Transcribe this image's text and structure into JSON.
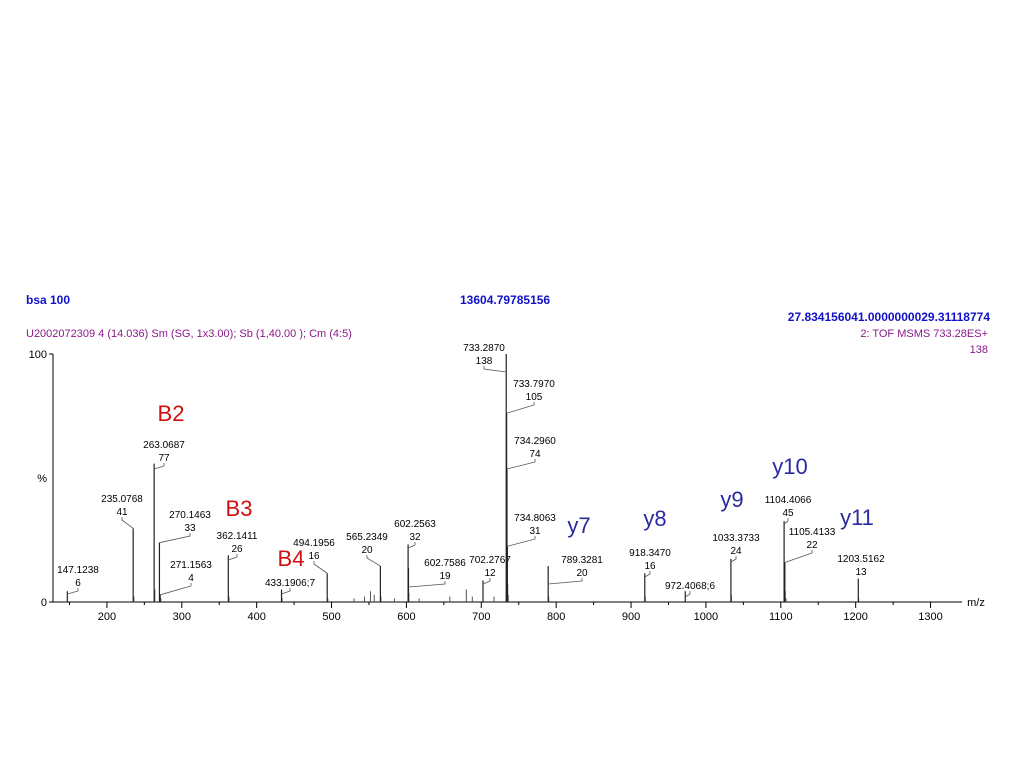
{
  "header": {
    "sample": "bsa 100",
    "center_value": "13604.79785156",
    "right_value": "27.834156041.0000000029.31118774",
    "file_info": "U2002072309  4 (14.036) Sm (SG, 1x3.00); Sb (1,40.00 ); Cm (4:5)",
    "scan_info": "2: TOF MSMS 733.28ES+",
    "max_intensity": "138"
  },
  "colors": {
    "ion_b": "#d01010",
    "ion_y": "#2a2aa0",
    "header_blue": "#1010c8",
    "header_purple": "#8a1a8a"
  },
  "chart_data": {
    "type": "bar",
    "title": "",
    "xlabel": "m/z",
    "ylabel": "%",
    "xlim": [
      128,
      1342
    ],
    "ylim": [
      0,
      100
    ],
    "x_ticks": [
      200,
      300,
      400,
      500,
      600,
      700,
      800,
      900,
      1000,
      1100,
      1200,
      1300
    ],
    "y_ticks": [
      {
        "value": 0,
        "label": "0"
      },
      {
        "value": 100,
        "label": "100"
      }
    ],
    "peaks": [
      {
        "mz": 147.1238,
        "intensity": 6,
        "label": "147.1238",
        "sublabel": "6"
      },
      {
        "mz": 235.0768,
        "intensity": 41,
        "label": "235.0768",
        "sublabel": "41"
      },
      {
        "mz": 263.0687,
        "intensity": 77,
        "label": "263.0687",
        "sublabel": "77"
      },
      {
        "mz": 270.1463,
        "intensity": 33,
        "label": "270.1463",
        "sublabel": "33"
      },
      {
        "mz": 271.1563,
        "intensity": 4,
        "label": "271.1563",
        "sublabel": "4"
      },
      {
        "mz": 362.1411,
        "intensity": 26,
        "label": "362.1411",
        "sublabel": "26"
      },
      {
        "mz": 433.1906,
        "intensity": 7,
        "label": "433.1906;7",
        "sublabel": ""
      },
      {
        "mz": 494.1956,
        "intensity": 16,
        "label": "494.1956",
        "sublabel": "16"
      },
      {
        "mz": 565.2349,
        "intensity": 20,
        "label": "565.2349",
        "sublabel": "20"
      },
      {
        "mz": 602.2563,
        "intensity": 32,
        "label": "602.2563",
        "sublabel": "32"
      },
      {
        "mz": 602.7586,
        "intensity": 19,
        "label": "602.7586",
        "sublabel": "19"
      },
      {
        "mz": 702.2767,
        "intensity": 12,
        "label": "702.2767",
        "sublabel": "12"
      },
      {
        "mz": 733.287,
        "intensity": 138,
        "label": "733.2870",
        "sublabel": "138"
      },
      {
        "mz": 733.797,
        "intensity": 105,
        "label": "733.7970",
        "sublabel": "105"
      },
      {
        "mz": 734.296,
        "intensity": 74,
        "label": "734.2960",
        "sublabel": "74"
      },
      {
        "mz": 734.8063,
        "intensity": 31,
        "label": "734.8063",
        "sublabel": "31"
      },
      {
        "mz": 789.3281,
        "intensity": 20,
        "label": "789.3281",
        "sublabel": "20"
      },
      {
        "mz": 918.347,
        "intensity": 16,
        "label": "918.3470",
        "sublabel": "16"
      },
      {
        "mz": 972.4068,
        "intensity": 6,
        "label": "972.4068;6",
        "sublabel": ""
      },
      {
        "mz": 1033.3733,
        "intensity": 24,
        "label": "1033.3733",
        "sublabel": "24"
      },
      {
        "mz": 1104.4066,
        "intensity": 45,
        "label": "1104.4066",
        "sublabel": "45"
      },
      {
        "mz": 1105.4133,
        "intensity": 22,
        "label": "1105.4133",
        "sublabel": "22"
      },
      {
        "mz": 1203.5162,
        "intensity": 13,
        "label": "1203.5162",
        "sublabel": "13"
      }
    ],
    "minor_peaks": [
      {
        "mz": 236,
        "intensity": 3
      },
      {
        "mz": 264,
        "intensity": 7
      },
      {
        "mz": 272,
        "intensity": 2
      },
      {
        "mz": 363,
        "intensity": 3
      },
      {
        "mz": 434,
        "intensity": 2
      },
      {
        "mz": 495,
        "intensity": 2
      },
      {
        "mz": 530,
        "intensity": 2
      },
      {
        "mz": 544,
        "intensity": 3
      },
      {
        "mz": 552,
        "intensity": 6
      },
      {
        "mz": 557,
        "intensity": 4
      },
      {
        "mz": 566,
        "intensity": 3
      },
      {
        "mz": 584,
        "intensity": 2
      },
      {
        "mz": 603.3,
        "intensity": 5
      },
      {
        "mz": 617,
        "intensity": 2
      },
      {
        "mz": 658,
        "intensity": 3
      },
      {
        "mz": 680,
        "intensity": 7
      },
      {
        "mz": 688,
        "intensity": 3
      },
      {
        "mz": 717,
        "intensity": 3
      },
      {
        "mz": 735.3,
        "intensity": 10
      },
      {
        "mz": 736,
        "intensity": 4
      },
      {
        "mz": 790,
        "intensity": 3
      },
      {
        "mz": 919,
        "intensity": 3
      },
      {
        "mz": 1034,
        "intensity": 4
      },
      {
        "mz": 1106,
        "intensity": 6
      },
      {
        "mz": 1107,
        "intensity": 2
      },
      {
        "mz": 1204,
        "intensity": 2
      }
    ],
    "ion_labels": [
      {
        "text": "B2",
        "type": "b"
      },
      {
        "text": "B3",
        "type": "b"
      },
      {
        "text": "B4",
        "type": "b"
      },
      {
        "text": "y7",
        "type": "y"
      },
      {
        "text": "y8",
        "type": "y"
      },
      {
        "text": "y9",
        "type": "y"
      },
      {
        "text": "y10",
        "type": "y"
      },
      {
        "text": "y11",
        "type": "y"
      }
    ]
  }
}
